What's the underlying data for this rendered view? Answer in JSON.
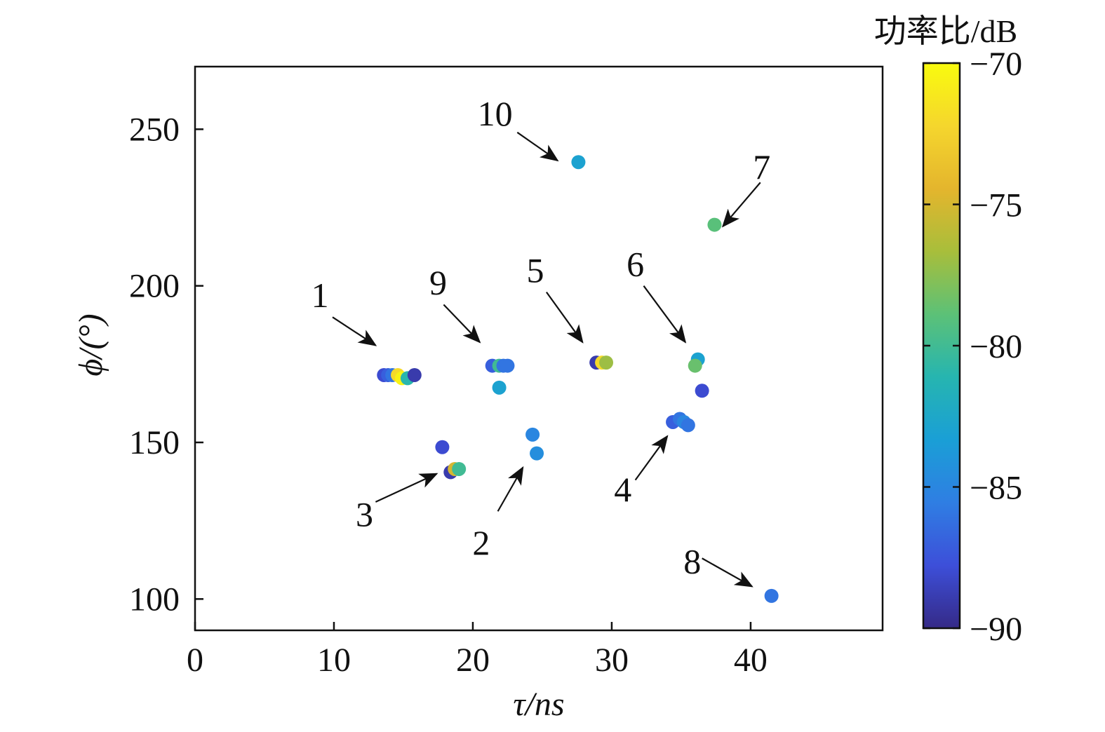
{
  "chart_data": {
    "type": "scatter",
    "xlabel": "τ/ns",
    "ylabel": "ϕ/(°)",
    "xlim": [
      0,
      49.5
    ],
    "ylim": [
      90,
      270
    ],
    "xticks": [
      0,
      10,
      20,
      30,
      40
    ],
    "yticks": [
      100,
      150,
      200,
      250
    ],
    "grid": false,
    "colorbar": {
      "title": "功率比/dB",
      "range": [
        -90,
        -70
      ],
      "ticks": [
        -70,
        -75,
        -80,
        -85,
        -90
      ],
      "colormap": "parula",
      "colors": [
        "#352a87",
        "#3d4fd9",
        "#2f7ee3",
        "#1a9fd6",
        "#26b5b0",
        "#5cc177",
        "#a8be3b",
        "#e4b52d",
        "#f5d62d",
        "#f9fb0e"
      ]
    },
    "points": [
      {
        "x": 13.6,
        "y": 171.5,
        "power": -88
      },
      {
        "x": 13.9,
        "y": 171.5,
        "power": -87
      },
      {
        "x": 14.2,
        "y": 171.5,
        "power": -86
      },
      {
        "x": 14.6,
        "y": 171.5,
        "power": -72
      },
      {
        "x": 14.9,
        "y": 170.5,
        "power": -70.5
      },
      {
        "x": 15.3,
        "y": 170.5,
        "power": -81
      },
      {
        "x": 15.8,
        "y": 171.5,
        "power": -89
      },
      {
        "x": 24.3,
        "y": 152.5,
        "power": -85
      },
      {
        "x": 24.6,
        "y": 146.5,
        "power": -84.5
      },
      {
        "x": 17.8,
        "y": 148.5,
        "power": -88
      },
      {
        "x": 18.4,
        "y": 140.5,
        "power": -89
      },
      {
        "x": 18.7,
        "y": 141.5,
        "power": -75
      },
      {
        "x": 19.0,
        "y": 141.5,
        "power": -80
      },
      {
        "x": 34.4,
        "y": 156.5,
        "power": -87
      },
      {
        "x": 34.9,
        "y": 157.5,
        "power": -86
      },
      {
        "x": 35.2,
        "y": 156.5,
        "power": -85
      },
      {
        "x": 35.5,
        "y": 155.5,
        "power": -86
      },
      {
        "x": 28.9,
        "y": 175.5,
        "power": -89
      },
      {
        "x": 29.3,
        "y": 175.5,
        "power": -72
      },
      {
        "x": 29.6,
        "y": 175.5,
        "power": -77
      },
      {
        "x": 36.2,
        "y": 176.5,
        "power": -83
      },
      {
        "x": 36.0,
        "y": 174.5,
        "power": -78.5
      },
      {
        "x": 36.5,
        "y": 166.5,
        "power": -88
      },
      {
        "x": 37.4,
        "y": 219.5,
        "power": -79
      },
      {
        "x": 41.5,
        "y": 101.0,
        "power": -86
      },
      {
        "x": 21.4,
        "y": 174.5,
        "power": -87
      },
      {
        "x": 21.9,
        "y": 174.5,
        "power": -80
      },
      {
        "x": 22.2,
        "y": 174.5,
        "power": -86
      },
      {
        "x": 22.5,
        "y": 174.5,
        "power": -86
      },
      {
        "x": 21.9,
        "y": 167.5,
        "power": -83
      },
      {
        "x": 27.6,
        "y": 239.5,
        "power": -83
      }
    ],
    "annotations": [
      {
        "label": "1",
        "text_x": 9.0,
        "text_y": 197,
        "from_x": 9.9,
        "from_y": 190,
        "to_x": 13.0,
        "to_y": 181
      },
      {
        "label": "2",
        "text_x": 20.6,
        "text_y": 118,
        "from_x": 21.8,
        "from_y": 128,
        "to_x": 23.6,
        "to_y": 142
      },
      {
        "label": "3",
        "text_x": 12.2,
        "text_y": 127,
        "from_x": 13.0,
        "from_y": 131,
        "to_x": 17.4,
        "to_y": 140
      },
      {
        "label": "4",
        "text_x": 30.8,
        "text_y": 135,
        "from_x": 31.7,
        "from_y": 138,
        "to_x": 34.0,
        "to_y": 152
      },
      {
        "label": "5",
        "text_x": 24.5,
        "text_y": 205,
        "from_x": 25.3,
        "from_y": 198,
        "to_x": 27.9,
        "to_y": 182
      },
      {
        "label": "6",
        "text_x": 31.7,
        "text_y": 207,
        "from_x": 32.3,
        "from_y": 200,
        "to_x": 35.3,
        "to_y": 182
      },
      {
        "label": "7",
        "text_x": 40.8,
        "text_y": 238,
        "from_x": 40.7,
        "from_y": 233,
        "to_x": 38.0,
        "to_y": 219
      },
      {
        "label": "8",
        "text_x": 35.8,
        "text_y": 112,
        "from_x": 36.5,
        "from_y": 113,
        "to_x": 40.1,
        "to_y": 104
      },
      {
        "label": "9",
        "text_x": 17.5,
        "text_y": 201,
        "from_x": 17.9,
        "from_y": 194,
        "to_x": 20.5,
        "to_y": 182
      },
      {
        "label": "10",
        "text_x": 21.6,
        "text_y": 255,
        "from_x": 23.2,
        "from_y": 249,
        "to_x": 26.1,
        "to_y": 240
      }
    ]
  }
}
